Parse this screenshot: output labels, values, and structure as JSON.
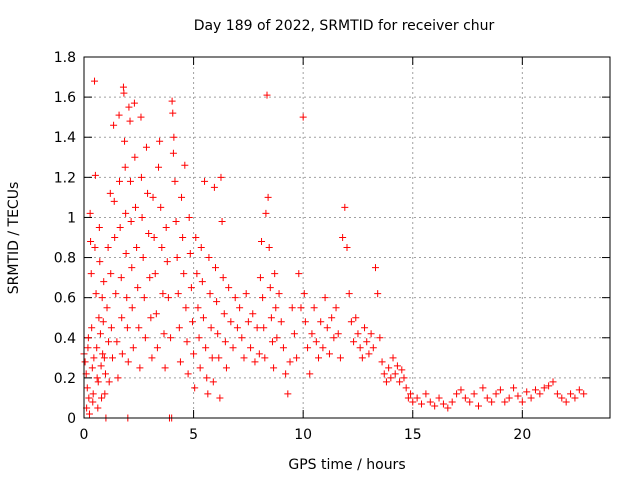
{
  "chart_data": {
    "type": "scatter",
    "title": "Day 189 of 2022, SRMTID for receiver chur",
    "xlabel": "GPS time / hours",
    "ylabel": "SRMTID / TECUs",
    "xlim": [
      0,
      24
    ],
    "ylim": [
      0,
      1.8
    ],
    "xticks": [
      0,
      5,
      10,
      15,
      20
    ],
    "xtick_labels": [
      "0",
      "5",
      "10",
      "15",
      "20"
    ],
    "yticks": [
      0,
      0.2,
      0.4,
      0.6,
      0.8,
      1,
      1.2,
      1.4,
      1.6,
      1.8
    ],
    "ytick_labels": [
      "0",
      "0.2",
      "0.4",
      "0.6",
      "0.8",
      "1",
      "1.2",
      "1.4",
      "1.6",
      "1.8"
    ],
    "grid": true,
    "marker": "+",
    "series_color": "#ff0000",
    "series": [
      {
        "name": "SRMTID",
        "points": [
          [
            0.0,
            0.32
          ],
          [
            0.05,
            0.28
          ],
          [
            0.1,
            0.22
          ],
          [
            0.12,
            0.05
          ],
          [
            0.15,
            0.15
          ],
          [
            0.18,
            0.35
          ],
          [
            0.2,
            0.4
          ],
          [
            0.22,
            0.1
          ],
          [
            0.25,
            0.02
          ],
          [
            0.28,
            1.02
          ],
          [
            0.3,
            0.88
          ],
          [
            0.33,
            0.72
          ],
          [
            0.35,
            0.45
          ],
          [
            0.38,
            0.25
          ],
          [
            0.4,
            0.08
          ],
          [
            0.42,
            0.12
          ],
          [
            0.45,
            0.3
          ],
          [
            0.48,
            1.68
          ],
          [
            0.5,
            0.85
          ],
          [
            0.52,
            1.21
          ],
          [
            0.55,
            0.62
          ],
          [
            0.58,
            0.35
          ],
          [
            0.6,
            0.2
          ],
          [
            0.63,
            0.05
          ],
          [
            0.65,
            0.18
          ],
          [
            0.68,
            0.5
          ],
          [
            0.7,
            0.95
          ],
          [
            0.72,
            0.78
          ],
          [
            0.75,
            0.42
          ],
          [
            0.78,
            0.26
          ],
          [
            0.8,
            0.1
          ],
          [
            0.83,
            0.6
          ],
          [
            0.85,
            0.32
          ],
          [
            0.88,
            0.48
          ],
          [
            0.9,
            0.68
          ],
          [
            0.93,
            0.3
          ],
          [
            0.95,
            0.12
          ],
          [
            0.98,
            0.22
          ],
          [
            1.0,
            0.0
          ],
          [
            1.05,
            0.55
          ],
          [
            1.1,
            0.85
          ],
          [
            1.12,
            0.38
          ],
          [
            1.15,
            0.18
          ],
          [
            1.2,
            1.12
          ],
          [
            1.22,
            0.72
          ],
          [
            1.25,
            0.45
          ],
          [
            1.3,
            0.3
          ],
          [
            1.35,
            1.46
          ],
          [
            1.38,
            1.08
          ],
          [
            1.4,
            0.9
          ],
          [
            1.45,
            0.62
          ],
          [
            1.5,
            0.38
          ],
          [
            1.55,
            0.2
          ],
          [
            1.6,
            1.51
          ],
          [
            1.62,
            1.18
          ],
          [
            1.65,
            0.95
          ],
          [
            1.7,
            0.7
          ],
          [
            1.72,
            0.5
          ],
          [
            1.75,
            0.32
          ],
          [
            1.8,
            1.65
          ],
          [
            1.82,
            1.62
          ],
          [
            1.85,
            1.38
          ],
          [
            1.88,
            1.25
          ],
          [
            1.9,
            1.02
          ],
          [
            1.92,
            0.82
          ],
          [
            1.95,
            0.6
          ],
          [
            1.98,
            0.45
          ],
          [
            2.0,
            0.0
          ],
          [
            2.02,
            0.28
          ],
          [
            2.05,
            1.55
          ],
          [
            2.1,
            1.48
          ],
          [
            2.12,
            1.18
          ],
          [
            2.15,
            0.98
          ],
          [
            2.18,
            0.75
          ],
          [
            2.2,
            0.55
          ],
          [
            2.25,
            0.35
          ],
          [
            2.3,
            1.57
          ],
          [
            2.32,
            1.3
          ],
          [
            2.35,
            1.05
          ],
          [
            2.4,
            0.85
          ],
          [
            2.45,
            0.65
          ],
          [
            2.5,
            0.45
          ],
          [
            2.55,
            0.25
          ],
          [
            2.6,
            1.5
          ],
          [
            2.62,
            1.2
          ],
          [
            2.65,
            1.0
          ],
          [
            2.7,
            0.8
          ],
          [
            2.75,
            0.6
          ],
          [
            2.8,
            0.4
          ],
          [
            2.85,
            1.35
          ],
          [
            2.9,
            1.12
          ],
          [
            2.95,
            0.92
          ],
          [
            3.0,
            0.7
          ],
          [
            3.05,
            0.5
          ],
          [
            3.1,
            0.3
          ],
          [
            3.15,
            1.1
          ],
          [
            3.2,
            0.9
          ],
          [
            3.25,
            0.72
          ],
          [
            3.3,
            0.52
          ],
          [
            3.35,
            0.35
          ],
          [
            3.4,
            1.25
          ],
          [
            3.45,
            1.38
          ],
          [
            3.5,
            1.05
          ],
          [
            3.55,
            0.85
          ],
          [
            3.6,
            0.62
          ],
          [
            3.65,
            0.42
          ],
          [
            3.7,
            0.25
          ],
          [
            3.75,
            0.95
          ],
          [
            3.8,
            0.78
          ],
          [
            3.85,
            0.6
          ],
          [
            3.9,
            0.0
          ],
          [
            3.95,
            0.4
          ],
          [
            4.0,
            0.0
          ],
          [
            4.02,
            1.58
          ],
          [
            4.05,
            1.52
          ],
          [
            4.08,
            1.32
          ],
          [
            4.1,
            1.4
          ],
          [
            4.15,
            1.18
          ],
          [
            4.2,
            0.98
          ],
          [
            4.25,
            0.8
          ],
          [
            4.3,
            0.62
          ],
          [
            4.35,
            0.45
          ],
          [
            4.4,
            0.28
          ],
          [
            4.45,
            1.1
          ],
          [
            4.5,
            0.9
          ],
          [
            4.55,
            0.72
          ],
          [
            4.6,
            1.26
          ],
          [
            4.65,
            0.55
          ],
          [
            4.7,
            0.38
          ],
          [
            4.75,
            0.22
          ],
          [
            4.8,
            1.0
          ],
          [
            4.85,
            0.82
          ],
          [
            4.9,
            0.65
          ],
          [
            4.95,
            0.48
          ],
          [
            5.0,
            0.32
          ],
          [
            5.05,
            0.15
          ],
          [
            5.1,
            0.9
          ],
          [
            5.15,
            0.72
          ],
          [
            5.2,
            0.55
          ],
          [
            5.25,
            0.4
          ],
          [
            5.3,
            0.25
          ],
          [
            5.35,
            0.85
          ],
          [
            5.4,
            0.68
          ],
          [
            5.45,
            0.5
          ],
          [
            5.5,
            1.18
          ],
          [
            5.55,
            0.35
          ],
          [
            5.6,
            0.2
          ],
          [
            5.65,
            0.12
          ],
          [
            5.7,
            0.8
          ],
          [
            5.75,
            0.62
          ],
          [
            5.8,
            0.45
          ],
          [
            5.85,
            0.3
          ],
          [
            5.9,
            0.18
          ],
          [
            5.95,
            1.15
          ],
          [
            6.0,
            0.75
          ],
          [
            6.05,
            0.58
          ],
          [
            6.1,
            0.42
          ],
          [
            6.15,
            0.3
          ],
          [
            6.2,
            0.1
          ],
          [
            6.25,
            1.2
          ],
          [
            6.3,
            0.98
          ],
          [
            6.35,
            0.7
          ],
          [
            6.4,
            0.52
          ],
          [
            6.45,
            0.38
          ],
          [
            6.5,
            0.25
          ],
          [
            6.6,
            0.65
          ],
          [
            6.7,
            0.48
          ],
          [
            6.8,
            0.35
          ],
          [
            6.9,
            0.6
          ],
          [
            7.0,
            0.45
          ],
          [
            7.1,
            0.55
          ],
          [
            7.2,
            0.4
          ],
          [
            7.3,
            0.3
          ],
          [
            7.4,
            0.62
          ],
          [
            7.5,
            0.48
          ],
          [
            7.6,
            0.35
          ],
          [
            7.7,
            0.52
          ],
          [
            7.8,
            0.28
          ],
          [
            7.9,
            0.45
          ],
          [
            8.0,
            0.32
          ],
          [
            8.05,
            0.7
          ],
          [
            8.1,
            0.88
          ],
          [
            8.15,
            0.6
          ],
          [
            8.2,
            0.45
          ],
          [
            8.25,
            0.3
          ],
          [
            8.3,
            1.02
          ],
          [
            8.35,
            1.61
          ],
          [
            8.4,
            1.1
          ],
          [
            8.45,
            0.85
          ],
          [
            8.5,
            0.65
          ],
          [
            8.55,
            0.5
          ],
          [
            8.6,
            0.38
          ],
          [
            8.65,
            0.25
          ],
          [
            8.7,
            0.72
          ],
          [
            8.75,
            0.55
          ],
          [
            8.8,
            0.4
          ],
          [
            8.9,
            0.62
          ],
          [
            9.0,
            0.48
          ],
          [
            9.1,
            0.35
          ],
          [
            9.2,
            0.22
          ],
          [
            9.3,
            0.12
          ],
          [
            9.4,
            0.28
          ],
          [
            9.5,
            0.55
          ],
          [
            9.6,
            0.42
          ],
          [
            9.7,
            0.3
          ],
          [
            9.8,
            0.72
          ],
          [
            9.9,
            0.55
          ],
          [
            10.0,
            1.5
          ],
          [
            10.05,
            0.62
          ],
          [
            10.1,
            0.48
          ],
          [
            10.2,
            0.35
          ],
          [
            10.3,
            0.22
          ],
          [
            10.4,
            0.42
          ],
          [
            10.5,
            0.55
          ],
          [
            10.6,
            0.38
          ],
          [
            10.7,
            0.3
          ],
          [
            10.8,
            0.48
          ],
          [
            10.9,
            0.35
          ],
          [
            11.0,
            0.6
          ],
          [
            11.1,
            0.45
          ],
          [
            11.2,
            0.32
          ],
          [
            11.3,
            0.5
          ],
          [
            11.4,
            0.4
          ],
          [
            11.5,
            0.55
          ],
          [
            11.6,
            0.42
          ],
          [
            11.7,
            0.3
          ],
          [
            11.8,
            0.9
          ],
          [
            11.9,
            1.05
          ],
          [
            12.0,
            0.85
          ],
          [
            12.1,
            0.62
          ],
          [
            12.2,
            0.48
          ],
          [
            12.3,
            0.38
          ],
          [
            12.4,
            0.5
          ],
          [
            12.5,
            0.42
          ],
          [
            12.6,
            0.35
          ],
          [
            12.7,
            0.3
          ],
          [
            12.8,
            0.45
          ],
          [
            12.9,
            0.38
          ],
          [
            13.0,
            0.32
          ],
          [
            13.1,
            0.42
          ],
          [
            13.2,
            0.35
          ],
          [
            13.3,
            0.75
          ],
          [
            13.4,
            0.62
          ],
          [
            13.5,
            0.4
          ],
          [
            13.6,
            0.28
          ],
          [
            13.7,
            0.22
          ],
          [
            13.8,
            0.18
          ],
          [
            13.9,
            0.25
          ],
          [
            14.0,
            0.2
          ],
          [
            14.1,
            0.3
          ],
          [
            14.2,
            0.22
          ],
          [
            14.3,
            0.26
          ],
          [
            14.4,
            0.18
          ],
          [
            14.5,
            0.24
          ],
          [
            14.6,
            0.2
          ],
          [
            14.7,
            0.15
          ],
          [
            14.8,
            0.1
          ],
          [
            14.9,
            0.12
          ],
          [
            15.0,
            0.08
          ],
          [
            15.2,
            0.1
          ],
          [
            15.4,
            0.07
          ],
          [
            15.6,
            0.12
          ],
          [
            15.8,
            0.08
          ],
          [
            16.0,
            0.06
          ],
          [
            16.2,
            0.1
          ],
          [
            16.4,
            0.07
          ],
          [
            16.6,
            0.05
          ],
          [
            16.8,
            0.08
          ],
          [
            17.0,
            0.12
          ],
          [
            17.2,
            0.14
          ],
          [
            17.4,
            0.1
          ],
          [
            17.6,
            0.08
          ],
          [
            17.8,
            0.12
          ],
          [
            18.0,
            0.06
          ],
          [
            18.2,
            0.15
          ],
          [
            18.4,
            0.1
          ],
          [
            18.6,
            0.08
          ],
          [
            18.8,
            0.12
          ],
          [
            19.0,
            0.14
          ],
          [
            19.2,
            0.08
          ],
          [
            19.4,
            0.1
          ],
          [
            19.6,
            0.15
          ],
          [
            19.8,
            0.11
          ],
          [
            20.0,
            0.08
          ],
          [
            20.2,
            0.13
          ],
          [
            20.4,
            0.1
          ],
          [
            20.6,
            0.14
          ],
          [
            20.8,
            0.12
          ],
          [
            21.0,
            0.15
          ],
          [
            21.2,
            0.16
          ],
          [
            21.4,
            0.18
          ],
          [
            21.6,
            0.12
          ],
          [
            21.8,
            0.1
          ],
          [
            22.0,
            0.08
          ],
          [
            22.2,
            0.12
          ],
          [
            22.4,
            0.1
          ],
          [
            22.6,
            0.14
          ],
          [
            22.8,
            0.12
          ]
        ]
      }
    ]
  }
}
